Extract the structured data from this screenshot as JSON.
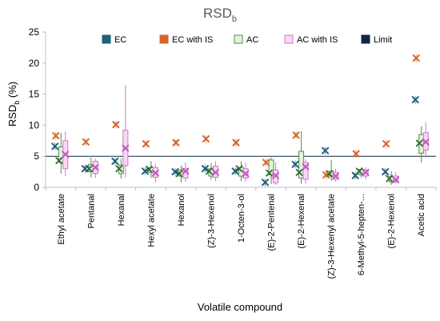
{
  "chart_data": {
    "type": "scatter",
    "title": "RSD",
    "title_sub": "b",
    "ylabel": "RSD",
    "ylabel_sub": "b",
    "ylabel_unit": " (%)",
    "xlabel": "Volatile compound",
    "ylim": [
      0,
      25
    ],
    "yticks": [
      0,
      5,
      10,
      15,
      20,
      25
    ],
    "grid": false,
    "legend_position": "top",
    "categories": [
      "Ethyl acetate",
      "Pentanal",
      "Hexanal",
      "Hexyl acetate",
      "Hexanol",
      "(Z)-3-Hexenol",
      "1-Octen-3-ol",
      "(E)-2-Pentenal",
      "(E)-2-Hexenal",
      "(Z)-3-Hexenyl acetate",
      "6-Methyl-5-hepten-...",
      "(E)-2-Hexenol",
      "Acetic acid"
    ],
    "limit": 5,
    "colors": {
      "EC": "#1f5f7a",
      "EC with IS": "#d8632a",
      "AC": "#2f6a2f",
      "AC with IS": "#c24fc0",
      "Limit": "#0e2841",
      "AC_box_fill": "#e2f3dc",
      "AC_box_stroke": "#4e8f44",
      "ACIS_box_fill": "#f8d8f3",
      "ACIS_box_stroke": "#c77cc1"
    },
    "series": [
      {
        "name": "EC",
        "values": [
          6.6,
          3.0,
          4.2,
          2.6,
          2.5,
          3.0,
          2.6,
          0.8,
          3.7,
          5.9,
          1.9,
          2.5,
          14.1
        ]
      },
      {
        "name": "EC with IS",
        "values": [
          8.3,
          7.3,
          10.1,
          7.0,
          7.2,
          7.8,
          7.2,
          4.0,
          8.4,
          2.0,
          5.4,
          7.0,
          20.8
        ]
      },
      {
        "name": "AC",
        "values": [
          4.3,
          3.0,
          3.0,
          2.9,
          2.2,
          2.6,
          3.0,
          2.3,
          2.4,
          2.2,
          2.6,
          1.4,
          7.1
        ],
        "boxes": [
          [
            2.2,
            4.0,
            6.5,
            8.8
          ],
          [
            1.6,
            2.5,
            3.7,
            4.8
          ],
          [
            1.4,
            2.2,
            3.6,
            4.6
          ],
          [
            1.5,
            2.4,
            3.2,
            4.2
          ],
          [
            0.8,
            1.8,
            2.8,
            3.5
          ],
          [
            1.2,
            1.8,
            3.0,
            3.9
          ],
          [
            1.0,
            1.8,
            3.2,
            4.2
          ],
          [
            0.5,
            2.0,
            4.4,
            4.8
          ],
          [
            0.6,
            1.5,
            5.8,
            9.0
          ],
          [
            1.0,
            1.8,
            2.6,
            4.4
          ],
          [
            1.5,
            2.0,
            2.9,
            3.2
          ],
          [
            0.4,
            0.9,
            1.8,
            2.6
          ],
          [
            4.0,
            5.5,
            8.5,
            9.8
          ]
        ]
      },
      {
        "name": "AC with IS",
        "values": [
          5.3,
          3.2,
          6.3,
          2.3,
          2.6,
          2.4,
          2.2,
          1.9,
          3.3,
          1.8,
          2.4,
          1.2,
          7.3
        ],
        "boxes": [
          [
            1.8,
            3.0,
            7.5,
            9.0
          ],
          [
            1.5,
            2.2,
            4.2,
            4.6
          ],
          [
            1.6,
            3.5,
            9.2,
            16.5
          ],
          [
            0.8,
            1.6,
            3.2,
            3.8
          ],
          [
            0.9,
            1.5,
            3.0,
            4.0
          ],
          [
            1.0,
            1.6,
            3.4,
            4.2
          ],
          [
            0.9,
            1.5,
            3.0,
            4.0
          ],
          [
            0.4,
            0.7,
            2.8,
            4.0
          ],
          [
            0.6,
            1.3,
            4.0,
            4.5
          ],
          [
            0.9,
            1.3,
            2.4,
            3.0
          ],
          [
            1.3,
            1.8,
            2.8,
            3.2
          ],
          [
            0.6,
            0.9,
            1.8,
            2.4
          ],
          [
            4.8,
            6.0,
            8.8,
            10.5
          ]
        ]
      },
      {
        "name": "Limit"
      }
    ]
  }
}
